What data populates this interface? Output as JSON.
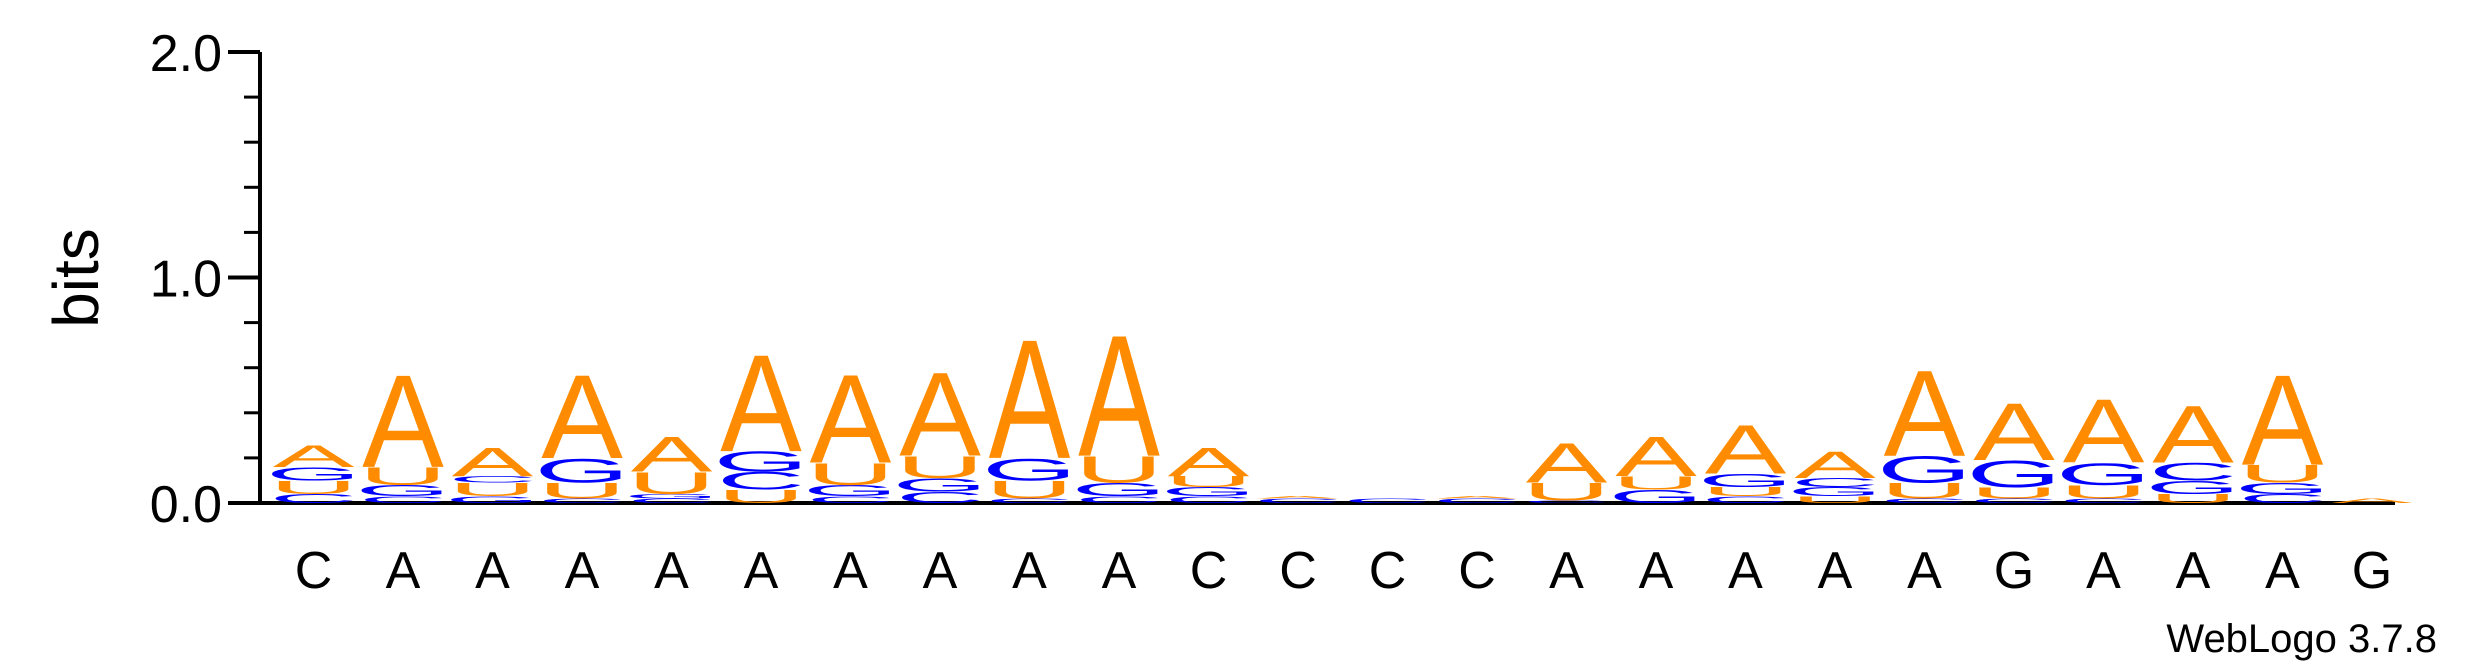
{
  "chart_data": {
    "type": "sequence-logo",
    "ylabel": "bits",
    "ylim": [
      0,
      2.0
    ],
    "yticks": [
      "0.0",
      "1.0",
      "2.0"
    ],
    "credit": "WebLogo 3.7.8",
    "colors": {
      "A": "#FF8C00",
      "U": "#FF8C00",
      "G": "#0000FF",
      "C": "#0000FF"
    },
    "positions": [
      {
        "label": "C",
        "stack": [
          [
            "C",
            0.04
          ],
          [
            "U",
            0.06
          ],
          [
            "G",
            0.06
          ],
          [
            "A",
            0.1
          ]
        ]
      },
      {
        "label": "A",
        "stack": [
          [
            "C",
            0.03
          ],
          [
            "G",
            0.05
          ],
          [
            "U",
            0.08
          ],
          [
            "A",
            0.42
          ]
        ]
      },
      {
        "label": "A",
        "stack": [
          [
            "G",
            0.03
          ],
          [
            "U",
            0.06
          ],
          [
            "C",
            0.03
          ],
          [
            "A",
            0.13
          ]
        ]
      },
      {
        "label": "A",
        "stack": [
          [
            "C",
            0.02
          ],
          [
            "U",
            0.07
          ],
          [
            "G",
            0.11
          ],
          [
            "A",
            0.38
          ]
        ]
      },
      {
        "label": "A",
        "stack": [
          [
            "C",
            0.02
          ],
          [
            "G",
            0.02
          ],
          [
            "U",
            0.1
          ],
          [
            "A",
            0.16
          ]
        ]
      },
      {
        "label": "A",
        "stack": [
          [
            "U",
            0.06
          ],
          [
            "C",
            0.08
          ],
          [
            "G",
            0.09
          ],
          [
            "A",
            0.44
          ]
        ]
      },
      {
        "label": "A",
        "stack": [
          [
            "C",
            0.03
          ],
          [
            "G",
            0.05
          ],
          [
            "U",
            0.1
          ],
          [
            "A",
            0.4
          ]
        ]
      },
      {
        "label": "A",
        "stack": [
          [
            "C",
            0.05
          ],
          [
            "G",
            0.06
          ],
          [
            "U",
            0.1
          ],
          [
            "A",
            0.38
          ]
        ]
      },
      {
        "label": "A",
        "stack": [
          [
            "C",
            0.02
          ],
          [
            "U",
            0.08
          ],
          [
            "G",
            0.1
          ],
          [
            "A",
            0.54
          ]
        ]
      },
      {
        "label": "A",
        "stack": [
          [
            "C",
            0.03
          ],
          [
            "G",
            0.06
          ],
          [
            "U",
            0.12
          ],
          [
            "A",
            0.55
          ]
        ]
      },
      {
        "label": "C",
        "stack": [
          [
            "C",
            0.03
          ],
          [
            "G",
            0.04
          ],
          [
            "U",
            0.05
          ],
          [
            "A",
            0.13
          ]
        ]
      },
      {
        "label": "C",
        "stack": [
          [
            "C",
            0.02
          ],
          [
            "A",
            0.01
          ]
        ]
      },
      {
        "label": "C",
        "stack": [
          [
            "C",
            0.02
          ]
        ]
      },
      {
        "label": "C",
        "stack": [
          [
            "C",
            0.02
          ],
          [
            "A",
            0.01
          ]
        ]
      },
      {
        "label": "A",
        "stack": [
          [
            "C",
            0.01
          ],
          [
            "U",
            0.08
          ],
          [
            "A",
            0.18
          ]
        ]
      },
      {
        "label": "A",
        "stack": [
          [
            "G",
            0.06
          ],
          [
            "U",
            0.06
          ],
          [
            "A",
            0.18
          ]
        ]
      },
      {
        "label": "A",
        "stack": [
          [
            "C",
            0.03
          ],
          [
            "U",
            0.04
          ],
          [
            "G",
            0.06
          ],
          [
            "A",
            0.22
          ]
        ]
      },
      {
        "label": "A",
        "stack": [
          [
            "U",
            0.03
          ],
          [
            "G",
            0.04
          ],
          [
            "C",
            0.04
          ],
          [
            "A",
            0.12
          ]
        ]
      },
      {
        "label": "A",
        "stack": [
          [
            "C",
            0.02
          ],
          [
            "U",
            0.07
          ],
          [
            "G",
            0.12
          ],
          [
            "A",
            0.39
          ]
        ]
      },
      {
        "label": "G",
        "stack": [
          [
            "C",
            0.02
          ],
          [
            "U",
            0.05
          ],
          [
            "G",
            0.12
          ],
          [
            "A",
            0.26
          ]
        ]
      },
      {
        "label": "A",
        "stack": [
          [
            "C",
            0.02
          ],
          [
            "U",
            0.06
          ],
          [
            "G",
            0.1
          ],
          [
            "A",
            0.29
          ]
        ]
      },
      {
        "label": "A",
        "stack": [
          [
            "U",
            0.04
          ],
          [
            "G",
            0.06
          ],
          [
            "C",
            0.08
          ],
          [
            "A",
            0.26
          ]
        ]
      },
      {
        "label": "A",
        "stack": [
          [
            "C",
            0.04
          ],
          [
            "G",
            0.05
          ],
          [
            "U",
            0.08
          ],
          [
            "A",
            0.41
          ]
        ]
      },
      {
        "label": "G",
        "stack": [
          [
            "A",
            0.02
          ]
        ]
      }
    ]
  }
}
